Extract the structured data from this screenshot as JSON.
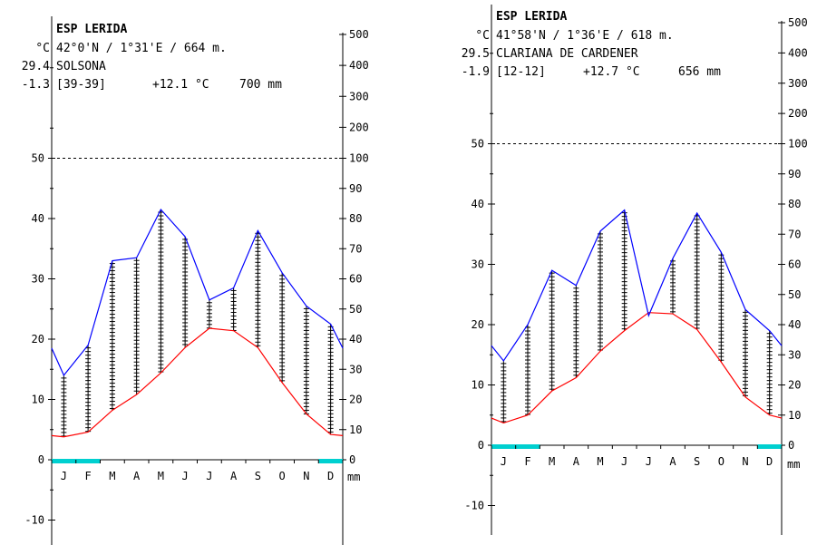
{
  "chart_data": [
    {
      "type": "line",
      "title": "ESP LERIDA",
      "temp_unit": "°C",
      "location": "42°0'N / 1°31'E / 664 m.",
      "station": "SOLSONA",
      "max_temp": "29.4",
      "min_temp": "-1.3",
      "years": "[39-39]",
      "mean_temp": "+12.1 °C",
      "annual_precip": "700 mm",
      "precip_unit": "mm",
      "categories": [
        "J",
        "F",
        "M",
        "A",
        "M",
        "J",
        "J",
        "A",
        "S",
        "O",
        "N",
        "D"
      ],
      "left_ticks": [
        "-10",
        "0",
        "10",
        "20",
        "30",
        "40",
        "50"
      ],
      "right_ticks": [
        "0",
        "10",
        "20",
        "30",
        "40",
        "50",
        "60",
        "70",
        "80",
        "90",
        "100",
        "200",
        "300",
        "400",
        "500"
      ],
      "series": [
        {
          "name": "Temperature (°C)",
          "color": "#ff0000",
          "values": [
            3.8,
            4.6,
            8.2,
            10.8,
            14.4,
            18.6,
            21.8,
            21.4,
            18.6,
            12.8,
            7.6,
            4.2
          ]
        },
        {
          "name": "Precipitation (mm)",
          "color": "#0000ff",
          "values": [
            28,
            38,
            66,
            67,
            83,
            74,
            53,
            57,
            76,
            62,
            51,
            45
          ]
        }
      ],
      "edge_temp": [
        4.0,
        4.0
      ],
      "edge_precip": [
        37,
        37
      ],
      "frost_months": [
        "J",
        "F",
        "D"
      ],
      "frost_color": "#00d0d0",
      "ylim_temp": [
        -13,
        70
      ],
      "grid": false
    },
    {
      "type": "line",
      "title": "ESP LERIDA",
      "temp_unit": "°C",
      "location": "41°58'N / 1°36'E / 618 m.",
      "station": "CLARIANA DE CARDENER",
      "max_temp": "29.5",
      "min_temp": "-1.9",
      "years": "[12-12]",
      "mean_temp": "+12.7 °C",
      "annual_precip": "656 mm",
      "precip_unit": "mm",
      "categories": [
        "J",
        "F",
        "M",
        "A",
        "M",
        "J",
        "J",
        "A",
        "S",
        "O",
        "N",
        "D"
      ],
      "left_ticks": [
        "-10",
        "0",
        "10",
        "20",
        "30",
        "40",
        "50"
      ],
      "right_ticks": [
        "0",
        "10",
        "20",
        "30",
        "40",
        "50",
        "60",
        "70",
        "80",
        "90",
        "100",
        "200",
        "300",
        "400",
        "500"
      ],
      "series": [
        {
          "name": "Temperature (°C)",
          "color": "#ff0000",
          "values": [
            3.7,
            5.0,
            9.0,
            11.2,
            15.6,
            19.0,
            22.0,
            21.8,
            19.2,
            13.8,
            8.0,
            5.0
          ]
        },
        {
          "name": "Precipitation (mm)",
          "color": "#0000ff",
          "values": [
            28,
            40,
            58,
            53,
            71,
            78,
            43,
            62,
            77,
            64,
            45,
            38
          ]
        }
      ],
      "edge_temp": [
        4.5,
        4.5
      ],
      "edge_precip": [
        33,
        33
      ],
      "frost_months": [
        "J",
        "F",
        "D"
      ],
      "frost_color": "#00d0d0",
      "ylim_temp": [
        -13,
        70
      ],
      "grid": false
    }
  ]
}
